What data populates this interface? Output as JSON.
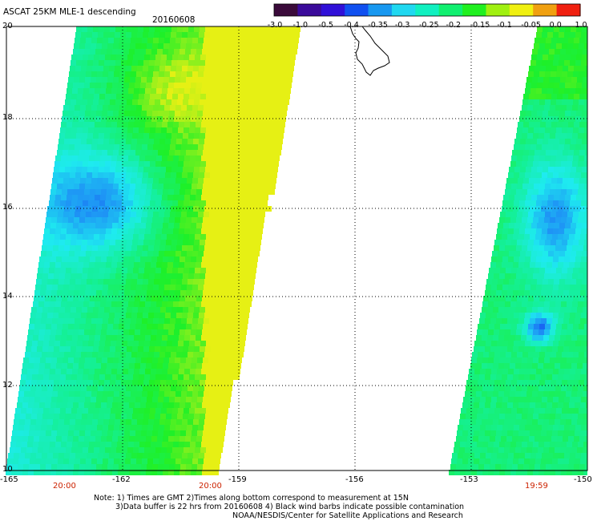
{
  "header": {
    "title": "ASCAT 25KM MLE-1 descending",
    "date": "20160608"
  },
  "colorbar": {
    "labels": [
      "-3.0",
      "-1.0",
      "-0.5",
      "-0.4",
      "-0.35",
      "-0.3",
      "-0.25",
      "-0.2",
      "-0.15",
      "-0.1",
      "-0.05",
      "0.0",
      "1.0"
    ],
    "colors": [
      "#3a0a3a",
      "#3a0a9a",
      "#3010d8",
      "#1050f0",
      "#1898f0",
      "#20d8f0",
      "#10f0c0",
      "#10f070",
      "#20f020",
      "#a0f010",
      "#f0f010",
      "#f0a010",
      "#f02010"
    ]
  },
  "axes": {
    "lat_labels": [
      "20",
      "18",
      "16",
      "14",
      "12",
      "10"
    ],
    "lon_labels": [
      "-165",
      "-162",
      "-159",
      "-156",
      "-153",
      "-150"
    ]
  },
  "swath_times": [
    "20:00",
    "20:00",
    "19:59"
  ],
  "notes": {
    "line1": "Note: 1) Times are GMT 2)Times along bottom correspond to measurement at 15N",
    "line2": "3)Data buffer is 22 hrs from 20160608 4) Black wind barbs indicate possible contamination",
    "line3": "NOAA/NESDIS/Center for Satellite Applications and Research"
  }
}
